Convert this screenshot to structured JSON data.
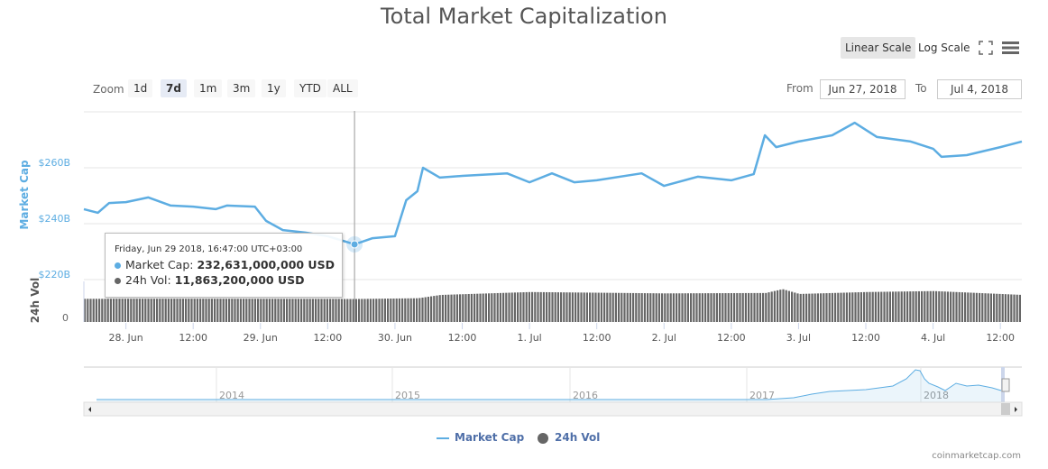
{
  "title": "Total Market Capitalization",
  "toolbar": {
    "linear_scale": "Linear Scale",
    "log_scale": "Log Scale",
    "fullscreen_icon": "fullscreen-icon",
    "menu_icon": "hamburger-menu-icon",
    "selected_scale": "Linear Scale"
  },
  "zoom": {
    "label": "Zoom",
    "buttons": [
      "1d",
      "7d",
      "1m",
      "3m",
      "1y",
      "YTD",
      "ALL"
    ],
    "selected": "7d"
  },
  "range": {
    "from_label": "From",
    "from_value": "Jun 27, 2018",
    "to_label": "To",
    "to_value": "Jul 4, 2018"
  },
  "tooltip": {
    "date": "Friday, Jun 29 2018, 16:47:00 UTC+03:00",
    "mcap_label": "Market Cap:",
    "mcap_value": "232,631,000,000 USD",
    "vol_label": "24h Vol:",
    "vol_value": "11,863,200,000 USD"
  },
  "legend": [
    {
      "name": "Market Cap",
      "color": "#5dade2"
    },
    {
      "name": "24h Vol",
      "color": "#666666"
    }
  ],
  "navigator": {
    "years": [
      "2014",
      "2015",
      "2016",
      "2017",
      "2018"
    ]
  },
  "credit": "coinmarketcap.com",
  "chart_data": {
    "type": "line",
    "x_range": [
      "2018-06-27T16:30",
      "2018-07-04T15:50"
    ],
    "x_ticks": [
      {
        "t": "2018-06-28T00:00",
        "label": "28. Jun"
      },
      {
        "t": "2018-06-28T12:00",
        "label": "12:00"
      },
      {
        "t": "2018-06-29T00:00",
        "label": "29. Jun"
      },
      {
        "t": "2018-06-29T12:00",
        "label": "12:00"
      },
      {
        "t": "2018-06-30T00:00",
        "label": "30. Jun"
      },
      {
        "t": "2018-06-30T12:00",
        "label": "12:00"
      },
      {
        "t": "2018-07-01T00:00",
        "label": "1. Jul"
      },
      {
        "t": "2018-07-01T12:00",
        "label": "12:00"
      },
      {
        "t": "2018-07-02T00:00",
        "label": "2. Jul"
      },
      {
        "t": "2018-07-02T12:00",
        "label": "12:00"
      },
      {
        "t": "2018-07-03T00:00",
        "label": "3. Jul"
      },
      {
        "t": "2018-07-03T12:00",
        "label": "12:00"
      },
      {
        "t": "2018-07-04T00:00",
        "label": "4. Jul"
      },
      {
        "t": "2018-07-04T12:00",
        "label": "12:00"
      }
    ],
    "mcap": {
      "ylabel": "Market Cap",
      "unit": "B USD",
      "ylim": [
        220,
        280
      ],
      "y_ticks": [
        {
          "v": 220,
          "label": "$220B"
        },
        {
          "v": 240,
          "label": "$240B"
        },
        {
          "v": 260,
          "label": "$260B"
        }
      ],
      "color": "#5dade2",
      "points": [
        [
          "2018-06-27T16:30",
          245.2
        ],
        [
          "2018-06-27T19:00",
          243.9
        ],
        [
          "2018-06-27T21:00",
          247.4
        ],
        [
          "2018-06-28T00:00",
          247.7
        ],
        [
          "2018-06-28T04:00",
          249.4
        ],
        [
          "2018-06-28T08:00",
          246.5
        ],
        [
          "2018-06-28T12:00",
          246.1
        ],
        [
          "2018-06-28T16:00",
          245.2
        ],
        [
          "2018-06-28T18:00",
          246.5
        ],
        [
          "2018-06-28T23:00",
          246.1
        ],
        [
          "2018-06-29T01:00",
          241.0
        ],
        [
          "2018-06-29T04:00",
          237.7
        ],
        [
          "2018-06-29T08:00",
          236.8
        ],
        [
          "2018-06-29T12:00",
          235.5
        ],
        [
          "2018-06-29T16:47",
          232.6
        ],
        [
          "2018-06-29T20:00",
          234.8
        ],
        [
          "2018-06-30T00:00",
          235.5
        ],
        [
          "2018-06-30T02:00",
          248.4
        ],
        [
          "2018-06-30T04:00",
          251.6
        ],
        [
          "2018-06-30T05:00",
          260.0
        ],
        [
          "2018-06-30T08:00",
          256.5
        ],
        [
          "2018-06-30T12:00",
          257.1
        ],
        [
          "2018-06-30T20:00",
          258.0
        ],
        [
          "2018-07-01T00:00",
          254.8
        ],
        [
          "2018-07-01T04:00",
          258.0
        ],
        [
          "2018-07-01T08:00",
          254.8
        ],
        [
          "2018-07-01T12:00",
          255.5
        ],
        [
          "2018-07-01T20:00",
          258.0
        ],
        [
          "2018-07-02T00:00",
          253.5
        ],
        [
          "2018-07-02T06:00",
          256.8
        ],
        [
          "2018-07-02T12:00",
          255.5
        ],
        [
          "2018-07-02T16:00",
          257.7
        ],
        [
          "2018-07-02T18:00",
          271.6
        ],
        [
          "2018-07-02T20:00",
          267.4
        ],
        [
          "2018-07-03T00:00",
          269.4
        ],
        [
          "2018-07-03T06:00",
          271.6
        ],
        [
          "2018-07-03T10:00",
          276.1
        ],
        [
          "2018-07-03T14:00",
          271.0
        ],
        [
          "2018-07-03T20:00",
          269.4
        ],
        [
          "2018-07-04T00:00",
          266.8
        ],
        [
          "2018-07-04T01:30",
          263.9
        ],
        [
          "2018-07-04T06:00",
          264.5
        ],
        [
          "2018-07-04T12:00",
          267.4
        ],
        [
          "2018-07-04T15:50",
          269.4
        ]
      ]
    },
    "volume": {
      "ylabel": "24h Vol",
      "unit": "B USD",
      "ylim": [
        0,
        21
      ],
      "y_ticks": [
        {
          "v": 0,
          "label": "0"
        }
      ],
      "color": "#666666",
      "points": [
        [
          "2018-06-27T16:30",
          12.0
        ],
        [
          "2018-06-28T12:00",
          12.0
        ],
        [
          "2018-06-29T16:47",
          11.9
        ],
        [
          "2018-06-30T04:00",
          12.3
        ],
        [
          "2018-06-30T08:00",
          14.0
        ],
        [
          "2018-07-01T00:00",
          15.5
        ],
        [
          "2018-07-02T00:00",
          14.8
        ],
        [
          "2018-07-02T18:00",
          15.0
        ],
        [
          "2018-07-02T21:00",
          17.0
        ],
        [
          "2018-07-03T00:00",
          14.5
        ],
        [
          "2018-07-03T12:00",
          15.5
        ],
        [
          "2018-07-04T00:00",
          16.0
        ],
        [
          "2018-07-04T15:50",
          14.0
        ]
      ]
    }
  }
}
